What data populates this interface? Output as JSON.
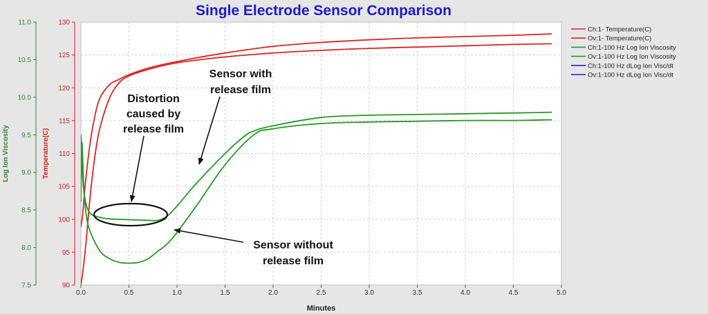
{
  "chart_data": {
    "type": "line",
    "title": "Single Electrode Sensor Comparison",
    "xlabel": "Minutes",
    "xlim": [
      0,
      5
    ],
    "xticks": [
      "0.0",
      "0.5",
      "1.0",
      "1.5",
      "2.0",
      "2.5",
      "3.0",
      "3.5",
      "4.0",
      "4.5",
      "5.0"
    ],
    "xtick_values": [
      0,
      0.5,
      1,
      1.5,
      2,
      2.5,
      3,
      3.5,
      4,
      4.5,
      5
    ],
    "y_left_outer": {
      "label": "Log Ion Viscosity",
      "lim": [
        7.5,
        11.0
      ],
      "ticks": [
        "7.5",
        "8.0",
        "8.5",
        "9.0",
        "9.5",
        "10.0",
        "10.5",
        "11.0"
      ],
      "tick_values": [
        7.5,
        8,
        8.5,
        9,
        9.5,
        10,
        10.5,
        11
      ],
      "color": "#2a8a2a"
    },
    "y_left_inner": {
      "label": "Temperature(C)",
      "lim": [
        90,
        130
      ],
      "ticks": [
        "90",
        "95",
        "100",
        "105",
        "110",
        "115",
        "120",
        "125",
        "130"
      ],
      "tick_values": [
        90,
        95,
        100,
        105,
        110,
        115,
        120,
        125,
        130
      ],
      "color": "#cc2222"
    },
    "grid": true,
    "legend_placement": "right",
    "series": [
      {
        "name": "Ch:1- Temperature(C)",
        "axis": "temp",
        "color": "#dd2222",
        "x": [
          0,
          0.02,
          0.05,
          0.1,
          0.15,
          0.2,
          0.3,
          0.4,
          0.5,
          0.7,
          1.0,
          1.5,
          2.0,
          2.5,
          3.0,
          3.5,
          4.0,
          4.5,
          4.9
        ],
        "y": [
          98.8,
          101,
          106,
          112,
          116,
          118.5,
          120.5,
          121.3,
          122,
          123,
          124,
          125.3,
          126.3,
          126.9,
          127.3,
          127.6,
          127.8,
          128,
          128.2
        ]
      },
      {
        "name": "Ov:1- Temperature(C)",
        "axis": "temp",
        "color": "#dd2222",
        "x": [
          0,
          0.02,
          0.05,
          0.1,
          0.15,
          0.2,
          0.3,
          0.4,
          0.5,
          0.7,
          1.0,
          1.5,
          2.0,
          2.5,
          3.0,
          3.5,
          4.0,
          4.5,
          4.9
        ],
        "y": [
          90,
          92,
          96,
          104,
          110,
          114,
          118.5,
          120.8,
          121.8,
          122.8,
          123.8,
          124.7,
          125.3,
          125.7,
          126,
          126.2,
          126.4,
          126.6,
          126.7
        ]
      },
      {
        "name": "Ch:1-100 Hz Log Ion Viscosity",
        "axis": "visc",
        "color": "#229922",
        "x": [
          0,
          0.02,
          0.05,
          0.1,
          0.2,
          0.3,
          0.5,
          0.7,
          0.8,
          0.9,
          1.0,
          1.2,
          1.5,
          1.7,
          1.8,
          2.0,
          2.5,
          3.0,
          3.5,
          4.0,
          4.5,
          4.9
        ],
        "y": [
          9.5,
          8.9,
          8.6,
          8.45,
          8.4,
          8.38,
          8.37,
          8.36,
          8.36,
          8.42,
          8.55,
          8.85,
          9.25,
          9.48,
          9.55,
          9.62,
          9.73,
          9.76,
          9.77,
          9.78,
          9.79,
          9.8
        ],
        "raw_start": [
          [
            0,
            9.1
          ],
          [
            0.02,
            8.8
          ],
          [
            0.05,
            8.55
          ],
          [
            0.1,
            8.45
          ]
        ]
      },
      {
        "name": "Ov:1-100 Hz Log Ion Viscosity",
        "axis": "visc",
        "color": "#229922",
        "x": [
          0,
          0.01,
          0.03,
          0.06,
          0.1,
          0.2,
          0.3,
          0.4,
          0.5,
          0.6,
          0.7,
          0.8,
          0.9,
          1.0,
          1.2,
          1.5,
          1.8,
          2.0,
          2.5,
          3.0,
          3.5,
          4.0,
          4.5,
          4.9
        ],
        "y": [
          8.6,
          9.4,
          8.8,
          8.4,
          8.2,
          7.95,
          7.85,
          7.8,
          7.79,
          7.8,
          7.85,
          7.95,
          8.05,
          8.2,
          8.55,
          9.1,
          9.5,
          9.58,
          9.65,
          9.67,
          9.68,
          9.69,
          9.69,
          9.7
        ]
      },
      {
        "name": "Ch:1-100 Hz dLog Ion Visc/dt",
        "axis": "visc",
        "color": "#2222cc",
        "x": [],
        "y": []
      },
      {
        "name": "Ov:1-100 Hz dLog Ion Visc/dt",
        "axis": "visc",
        "color": "#2222cc",
        "x": [],
        "y": []
      }
    ],
    "annotations": [
      {
        "text_lines": [
          "Sensor with",
          "release film"
        ]
      },
      {
        "text_lines": [
          "Distortion",
          "caused by",
          "release film"
        ]
      },
      {
        "text_lines": [
          "Sensor without",
          "release film"
        ]
      }
    ]
  }
}
